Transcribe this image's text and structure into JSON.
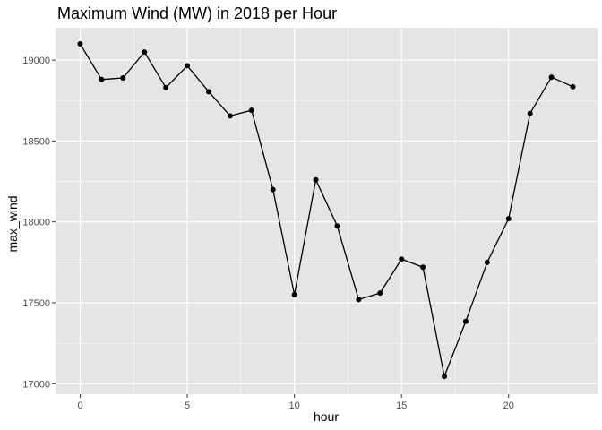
{
  "chart_data": {
    "type": "line",
    "title": "Maximum Wind (MW) in 2018 per Hour",
    "xlabel": "hour",
    "ylabel": "max_wind",
    "xlim": [
      -1.15,
      24.15
    ],
    "ylim": [
      16935,
      19200
    ],
    "x_ticks": [
      0,
      5,
      10,
      15,
      20
    ],
    "y_ticks": [
      17000,
      17500,
      18000,
      18500,
      19000
    ],
    "grid": true,
    "markers": true,
    "colors": {
      "panel": "#e5e5e5",
      "grid": "#ffffff",
      "line": "#000000",
      "tick_text": "#4d4d4d"
    },
    "x": [
      0,
      1,
      2,
      3,
      4,
      5,
      6,
      7,
      8,
      9,
      10,
      11,
      12,
      13,
      14,
      15,
      16,
      17,
      18,
      19,
      20,
      21,
      22,
      23
    ],
    "y": [
      19100,
      18880,
      18890,
      19050,
      18830,
      18965,
      18805,
      18655,
      18690,
      18200,
      17550,
      18260,
      17975,
      17520,
      17560,
      17770,
      17720,
      17045,
      17385,
      17750,
      18020,
      18670,
      18895,
      18835
    ]
  }
}
